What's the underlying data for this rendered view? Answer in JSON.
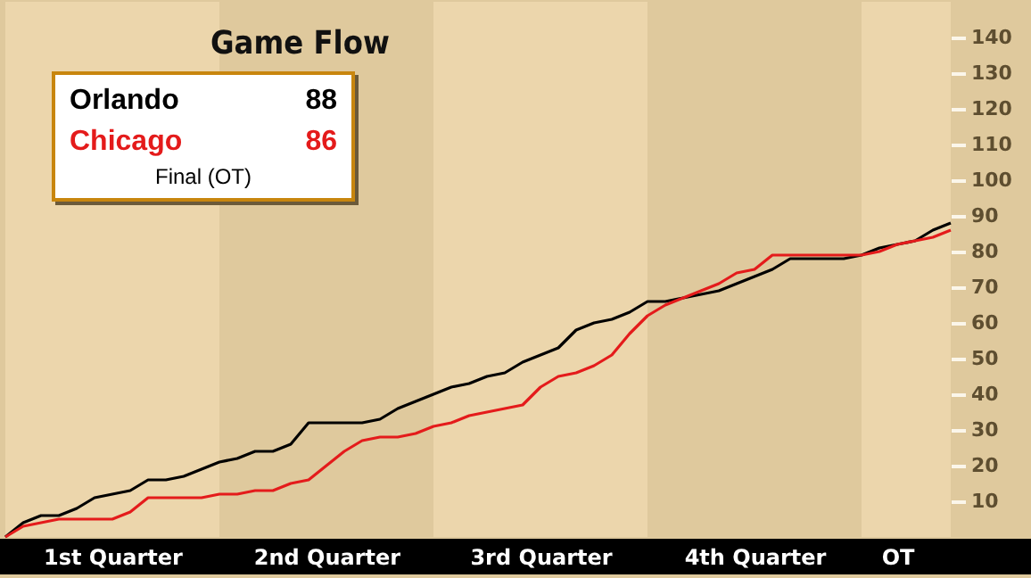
{
  "chart_data": {
    "type": "line",
    "title": "Game Flow",
    "categories": [
      null,
      null,
      null,
      null,
      null,
      null,
      "1st Quarter",
      null,
      null,
      null,
      null,
      null,
      null,
      null,
      null,
      null,
      null,
      null,
      "2nd Quarter",
      null,
      null,
      null,
      null,
      null,
      null,
      null,
      null,
      null,
      null,
      null,
      "3rd Quarter",
      null,
      null,
      null,
      null,
      null,
      null,
      null,
      null,
      null,
      null,
      null,
      "4th Quarter",
      null,
      null,
      null,
      null,
      null,
      null,
      null,
      "OT",
      null,
      null,
      null
    ],
    "ylim": [
      0,
      150
    ],
    "yticks": [
      10,
      20,
      30,
      40,
      50,
      60,
      70,
      80,
      90,
      100,
      110,
      120,
      130,
      140
    ],
    "annotations": [
      "88",
      "86",
      "Final (OT)"
    ],
    "series": [
      {
        "name": "Orlando",
        "color": "#000000",
        "values": [
          0,
          4,
          6,
          6,
          8,
          11,
          12,
          13,
          16,
          16,
          17,
          19,
          21,
          22,
          24,
          24,
          26,
          32,
          32,
          32,
          32,
          33,
          36,
          38,
          40,
          42,
          43,
          45,
          46,
          49,
          51,
          53,
          58,
          60,
          61,
          63,
          66,
          66,
          67,
          68,
          69,
          71,
          73,
          75,
          78,
          78,
          78,
          78,
          79,
          81,
          82,
          83,
          86,
          88
        ]
      },
      {
        "name": "Chicago",
        "color": "#e41b1b",
        "values": [
          0,
          3,
          4,
          5,
          5,
          5,
          5,
          7,
          11,
          11,
          11,
          11,
          12,
          12,
          13,
          13,
          15,
          16,
          20,
          24,
          27,
          28,
          28,
          29,
          31,
          32,
          34,
          35,
          36,
          37,
          42,
          45,
          46,
          48,
          51,
          57,
          62,
          65,
          67,
          69,
          71,
          74,
          75,
          79,
          79,
          79,
          79,
          79,
          79,
          80,
          82,
          83,
          84,
          86
        ]
      }
    ]
  }
}
